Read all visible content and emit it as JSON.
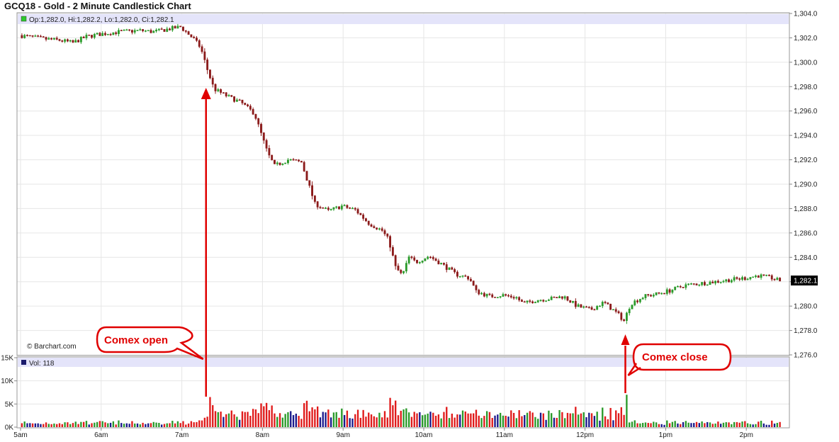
{
  "title": "GCQ18 - Gold - 2 Minute Candlestick Chart",
  "info_line": "Op:1,282.0, Hi:1,282.2, Lo:1,282.0, Ci:1,282.1",
  "volume_line": "Vol: 118",
  "watermark": "© Barchart.com",
  "last_price_label": "1,282.1",
  "colors": {
    "up": "#2a9a2a",
    "down": "#8b1a1a",
    "vol_up": "#2a9a2a",
    "vol_down": "#e01b1b",
    "vol_flat": "#1a1a8c",
    "annotation": "#e00000",
    "band": "#e4e4fa",
    "last_bg": "#000000"
  },
  "annotations": [
    {
      "text": "Comex open",
      "time": "7:18"
    },
    {
      "text": "Comex close",
      "time": "12:30"
    }
  ],
  "chart_data": {
    "type": "candlestick",
    "title": "GCQ18 - Gold - 2 Minute Candlestick Chart",
    "interval": "2 minute",
    "x_tick_labels": [
      "5am",
      "6am",
      "7am",
      "8am",
      "9am",
      "10am",
      "11am",
      "12pm",
      "1pm",
      "2pm"
    ],
    "y_tick_labels": [
      "1,276.0",
      "1,278.0",
      "1,280.0",
      "1,282.0",
      "1,284.0",
      "1,286.0",
      "1,288.0",
      "1,290.0",
      "1,292.0",
      "1,294.0",
      "1,296.0",
      "1,298.0",
      "1,300.0",
      "1,302.0",
      "1,304.0"
    ],
    "price_ylim": [
      1276,
      1304
    ],
    "volume_tick_labels": [
      "0K",
      "5K",
      "10K",
      "15K"
    ],
    "volume_ylim": [
      0,
      15000
    ],
    "x_range": [
      "5:00",
      "14:35"
    ],
    "price_path": [
      [
        "5:00",
        1302.2
      ],
      [
        "5:20",
        1301.9
      ],
      [
        "5:30",
        1301.8
      ],
      [
        "5:40",
        1301.6
      ],
      [
        "5:50",
        1302.1
      ],
      [
        "6:00",
        1302.3
      ],
      [
        "6:15",
        1302.5
      ],
      [
        "6:30",
        1302.6
      ],
      [
        "6:40",
        1302.5
      ],
      [
        "6:50",
        1302.7
      ],
      [
        "7:00",
        1302.9
      ],
      [
        "7:05",
        1302.4
      ],
      [
        "7:10",
        1301.9
      ],
      [
        "7:15",
        1301.2
      ],
      [
        "7:20",
        1299.4
      ],
      [
        "7:25",
        1297.8
      ],
      [
        "7:35",
        1297.2
      ],
      [
        "7:45",
        1296.7
      ],
      [
        "7:55",
        1295.8
      ],
      [
        "8:05",
        1292.5
      ],
      [
        "8:10",
        1291.5
      ],
      [
        "8:20",
        1292.0
      ],
      [
        "8:30",
        1291.8
      ],
      [
        "8:40",
        1288.4
      ],
      [
        "8:50",
        1287.8
      ],
      [
        "9:00",
        1288.2
      ],
      [
        "9:10",
        1287.9
      ],
      [
        "9:20",
        1286.8
      ],
      [
        "9:30",
        1286.2
      ],
      [
        "9:35",
        1285.4
      ],
      [
        "9:40",
        1283.2
      ],
      [
        "9:45",
        1282.5
      ],
      [
        "9:50",
        1284.0
      ],
      [
        "9:55",
        1283.6
      ],
      [
        "10:05",
        1284.1
      ],
      [
        "10:15",
        1283.4
      ],
      [
        "10:25",
        1282.6
      ],
      [
        "10:35",
        1282.3
      ],
      [
        "10:40",
        1281.2
      ],
      [
        "10:50",
        1280.8
      ],
      [
        "11:00",
        1280.9
      ],
      [
        "11:10",
        1280.7
      ],
      [
        "11:15",
        1280.2
      ],
      [
        "11:25",
        1280.5
      ],
      [
        "11:35",
        1280.6
      ],
      [
        "11:45",
        1280.8
      ],
      [
        "11:55",
        1280.0
      ],
      [
        "12:05",
        1279.7
      ],
      [
        "12:15",
        1280.3
      ],
      [
        "12:25",
        1279.4
      ],
      [
        "12:30",
        1278.8
      ],
      [
        "12:35",
        1280.2
      ],
      [
        "12:45",
        1280.8
      ],
      [
        "12:55",
        1281.0
      ],
      [
        "13:05",
        1281.3
      ],
      [
        "13:15",
        1281.7
      ],
      [
        "13:30",
        1281.9
      ],
      [
        "13:45",
        1282.1
      ],
      [
        "14:00",
        1282.3
      ],
      [
        "14:10",
        1282.5
      ],
      [
        "14:20",
        1282.3
      ],
      [
        "14:25",
        1282.1
      ]
    ]
  }
}
